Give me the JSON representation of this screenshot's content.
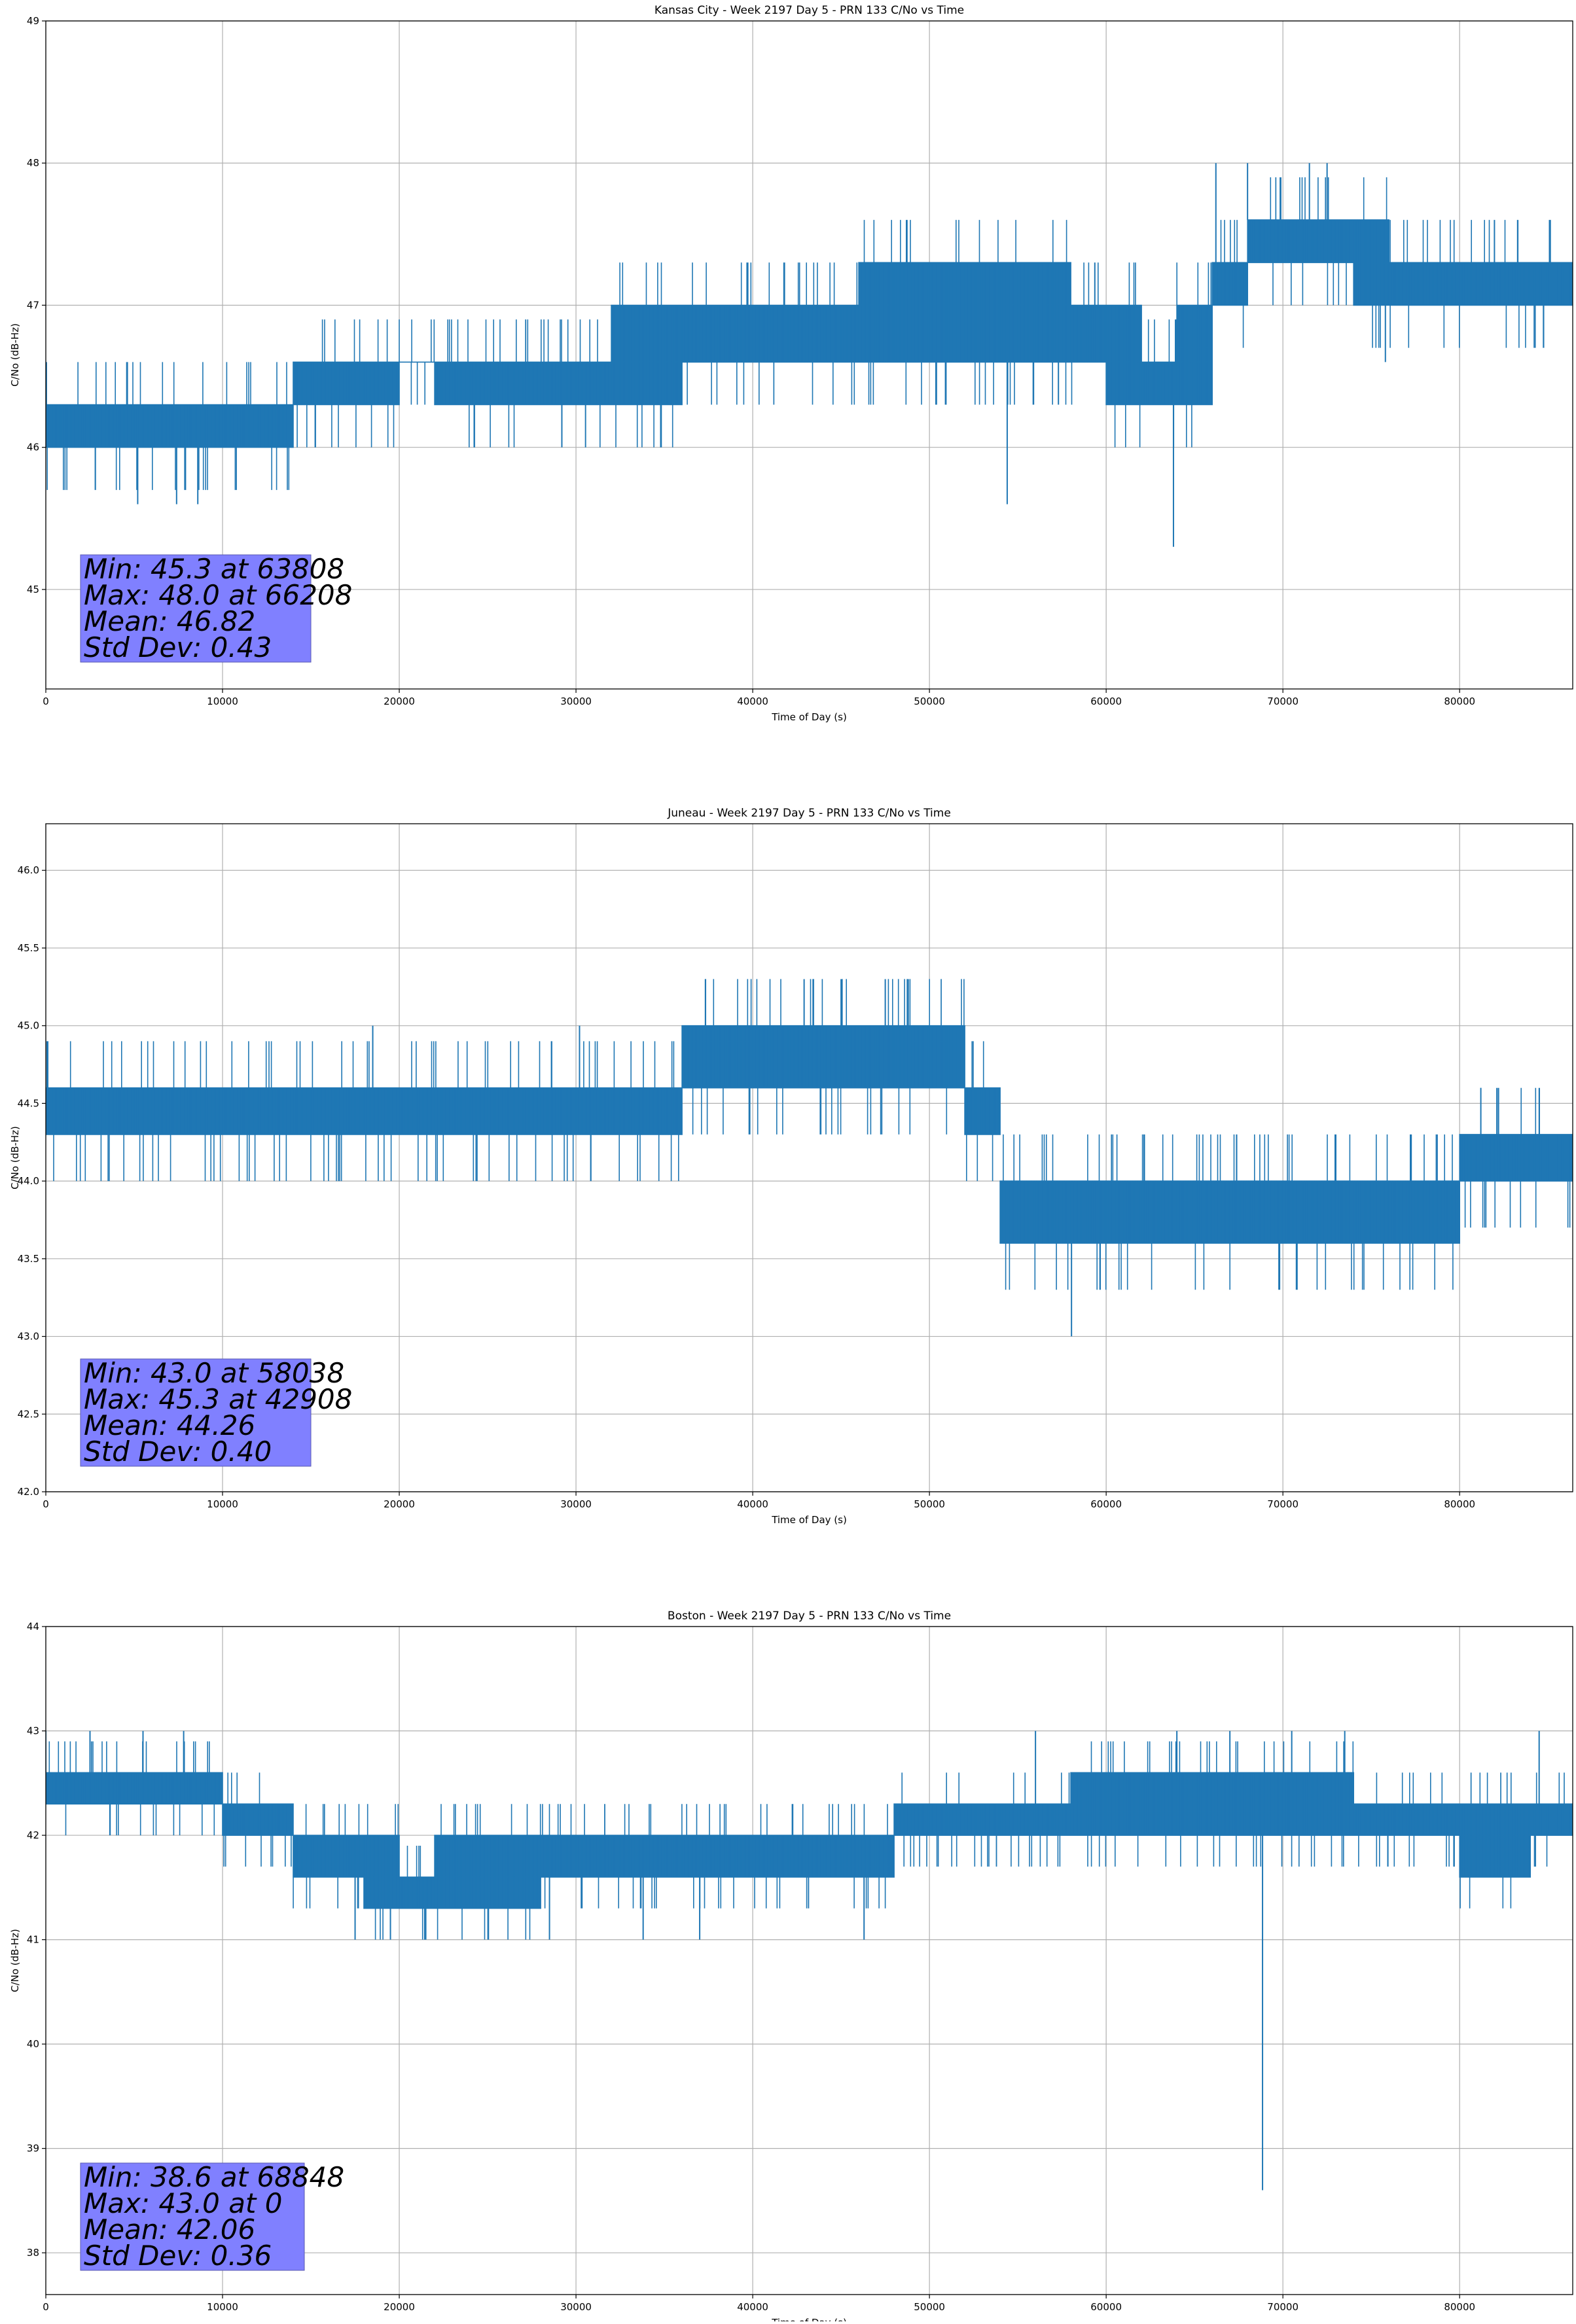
{
  "chart_data": [
    {
      "type": "line",
      "title": "Kansas City - Week 2197 Day 5 - PRN 133 C/No vs Time",
      "xlabel": "Time of Day (s)",
      "ylabel": "C/No (dB-Hz)",
      "xlim": [
        0,
        86400
      ],
      "ylim": [
        44.3,
        49
      ],
      "xticks": [
        0,
        10000,
        20000,
        30000,
        40000,
        50000,
        60000,
        70000,
        80000
      ],
      "yticks": [
        45,
        46,
        47,
        48,
        49
      ],
      "tick_decimals": 0,
      "grid": true,
      "color": "#1f77b4",
      "series": [
        {
          "x": [
            0,
            2000,
            4000,
            6000,
            8000,
            10000,
            12000,
            14000,
            16000,
            18000,
            20000,
            22000,
            24000,
            26000,
            28000,
            30000,
            32000,
            34000,
            36000,
            38000,
            40000,
            42000,
            44000,
            46000,
            48000,
            50000,
            52000,
            54000,
            56000,
            58000,
            60000,
            62000,
            64000,
            66000,
            68000,
            70000,
            72000,
            74000,
            76000,
            78000,
            80000,
            82000,
            84000,
            86400
          ],
          "low": [
            46.0,
            46.0,
            46.0,
            46.0,
            46.0,
            46.0,
            46.0,
            46.3,
            46.3,
            46.3,
            46.6,
            46.3,
            46.3,
            46.3,
            46.3,
            46.3,
            46.3,
            46.3,
            46.6,
            46.6,
            46.6,
            46.6,
            46.6,
            46.6,
            46.6,
            46.6,
            46.6,
            46.6,
            46.6,
            46.6,
            46.3,
            46.3,
            46.3,
            47.0,
            47.3,
            47.3,
            47.3,
            47.0,
            47.0,
            47.0,
            47.0,
            47.0,
            47.0,
            47.0
          ],
          "high": [
            46.3,
            46.3,
            46.3,
            46.3,
            46.3,
            46.3,
            46.3,
            46.6,
            46.6,
            46.6,
            46.6,
            46.6,
            46.6,
            46.6,
            46.6,
            46.6,
            47.0,
            47.0,
            47.0,
            47.0,
            47.0,
            47.0,
            47.0,
            47.3,
            47.3,
            47.3,
            47.3,
            47.3,
            47.3,
            47.0,
            47.0,
            46.6,
            47.0,
            47.3,
            47.6,
            47.6,
            47.6,
            47.6,
            47.3,
            47.3,
            47.3,
            47.3,
            47.3,
            47.3
          ],
          "spikes": [
            [
              5200,
              45.6
            ],
            [
              7400,
              45.6
            ],
            [
              8600,
              45.6
            ],
            [
              29200,
              46.0
            ],
            [
              54400,
              45.6
            ],
            [
              63808,
              45.3
            ],
            [
              66208,
              48.0
            ],
            [
              68000,
              48.0
            ],
            [
              71500,
              48.0
            ],
            [
              72500,
              48.0
            ],
            [
              75800,
              46.6
            ]
          ]
        }
      ],
      "stats": [
        "Min: 45.3 at 63808",
        "Max: 48.0 at 66208",
        "Mean: 46.82",
        "Std Dev: 0.43"
      ]
    },
    {
      "type": "line",
      "title": "Juneau - Week 2197 Day 5 - PRN 133 C/No vs Time",
      "xlabel": "Time of Day (s)",
      "ylabel": "C/No (dB-Hz)",
      "xlim": [
        0,
        86400
      ],
      "ylim": [
        42.0,
        46.3
      ],
      "xticks": [
        0,
        10000,
        20000,
        30000,
        40000,
        50000,
        60000,
        70000,
        80000
      ],
      "yticks": [
        42.0,
        42.5,
        43.0,
        43.5,
        44.0,
        44.5,
        45.0,
        45.5,
        46.0
      ],
      "tick_decimals": 1,
      "grid": true,
      "color": "#1f77b4",
      "series": [
        {
          "x": [
            0,
            2000,
            4000,
            6000,
            8000,
            10000,
            12000,
            14000,
            16000,
            18000,
            20000,
            22000,
            24000,
            26000,
            28000,
            30000,
            32000,
            34000,
            36000,
            38000,
            40000,
            42000,
            44000,
            46000,
            48000,
            50000,
            52000,
            54000,
            56000,
            58000,
            60000,
            62000,
            64000,
            66000,
            68000,
            70000,
            72000,
            74000,
            76000,
            78000,
            80000,
            82000,
            84000,
            86400
          ],
          "low": [
            44.3,
            44.3,
            44.3,
            44.3,
            44.3,
            44.3,
            44.3,
            44.3,
            44.3,
            44.3,
            44.3,
            44.3,
            44.3,
            44.3,
            44.3,
            44.3,
            44.3,
            44.3,
            44.6,
            44.6,
            44.6,
            44.6,
            44.6,
            44.6,
            44.6,
            44.6,
            44.3,
            43.6,
            43.6,
            43.6,
            43.6,
            43.6,
            43.6,
            43.6,
            43.6,
            43.6,
            43.6,
            43.6,
            43.6,
            43.6,
            44.0,
            44.0,
            44.0,
            44.0
          ],
          "high": [
            44.6,
            44.6,
            44.6,
            44.6,
            44.6,
            44.6,
            44.6,
            44.6,
            44.6,
            44.6,
            44.6,
            44.6,
            44.6,
            44.6,
            44.6,
            44.6,
            44.6,
            44.6,
            45.0,
            45.0,
            45.0,
            45.0,
            45.0,
            45.0,
            45.0,
            45.0,
            44.6,
            44.0,
            44.0,
            44.0,
            44.0,
            44.0,
            44.0,
            44.0,
            44.0,
            44.0,
            44.0,
            44.0,
            44.0,
            44.0,
            44.3,
            44.3,
            44.3,
            44.3
          ],
          "spikes": [
            [
              18500,
              45.0
            ],
            [
              30200,
              45.0
            ],
            [
              42908,
              45.3
            ],
            [
              45000,
              45.3
            ],
            [
              47500,
              45.3
            ],
            [
              48800,
              45.3
            ],
            [
              58038,
              43.0
            ],
            [
              81200,
              44.6
            ]
          ]
        }
      ],
      "stats": [
        "Min: 43.0 at 58038",
        "Max: 45.3 at 42908",
        "Mean: 44.26",
        "Std Dev: 0.40"
      ]
    },
    {
      "type": "line",
      "title": "Boston - Week 2197 Day 5 - PRN 133 C/No vs Time",
      "xlabel": "Time of Day (s)",
      "ylabel": "C/No (dB-Hz)",
      "xlim": [
        0,
        86400
      ],
      "ylim": [
        37.6,
        44
      ],
      "xticks": [
        0,
        10000,
        20000,
        30000,
        40000,
        50000,
        60000,
        70000,
        80000
      ],
      "yticks": [
        38,
        39,
        40,
        41,
        42,
        43,
        44
      ],
      "tick_decimals": 0,
      "grid": true,
      "color": "#1f77b4",
      "series": [
        {
          "x": [
            0,
            2000,
            4000,
            6000,
            8000,
            10000,
            12000,
            14000,
            16000,
            18000,
            20000,
            22000,
            24000,
            26000,
            28000,
            30000,
            32000,
            34000,
            36000,
            38000,
            40000,
            42000,
            44000,
            46000,
            48000,
            50000,
            52000,
            54000,
            56000,
            58000,
            60000,
            62000,
            64000,
            66000,
            68000,
            70000,
            72000,
            74000,
            76000,
            78000,
            80000,
            82000,
            84000,
            86400
          ],
          "low": [
            42.3,
            42.3,
            42.3,
            42.3,
            42.3,
            42.0,
            42.0,
            41.6,
            41.6,
            41.3,
            41.3,
            41.3,
            41.3,
            41.3,
            41.6,
            41.6,
            41.6,
            41.6,
            41.6,
            41.6,
            41.6,
            41.6,
            41.6,
            41.6,
            42.0,
            42.0,
            42.0,
            42.0,
            42.0,
            42.0,
            42.0,
            42.0,
            42.0,
            42.0,
            42.0,
            42.0,
            42.0,
            42.0,
            42.0,
            42.0,
            41.6,
            41.6,
            42.0,
            42.0
          ],
          "high": [
            42.6,
            42.6,
            42.6,
            42.6,
            42.6,
            42.3,
            42.3,
            42.0,
            42.0,
            42.0,
            41.6,
            42.0,
            42.0,
            42.0,
            42.0,
            42.0,
            42.0,
            42.0,
            42.0,
            42.0,
            42.0,
            42.0,
            42.0,
            42.0,
            42.3,
            42.3,
            42.3,
            42.3,
            42.3,
            42.6,
            42.6,
            42.6,
            42.6,
            42.6,
            42.6,
            42.6,
            42.6,
            42.3,
            42.3,
            42.3,
            42.3,
            42.3,
            42.3,
            42.3
          ],
          "spikes": [
            [
              0,
              43.0
            ],
            [
              2500,
              43.0
            ],
            [
              5500,
              43.0
            ],
            [
              7800,
              43.0
            ],
            [
              17500,
              41.0
            ],
            [
              19500,
              41.0
            ],
            [
              21500,
              41.0
            ],
            [
              28500,
              41.0
            ],
            [
              33800,
              41.0
            ],
            [
              37000,
              41.0
            ],
            [
              46300,
              41.0
            ],
            [
              56000,
              43.0
            ],
            [
              64000,
              43.0
            ],
            [
              67000,
              43.0
            ],
            [
              68848,
              38.6
            ],
            [
              70500,
              43.0
            ],
            [
              73500,
              43.0
            ],
            [
              84500,
              43.0
            ]
          ]
        }
      ],
      "stats": [
        "Min: 38.6 at 68848",
        "Max: 43.0 at 0",
        "Mean: 42.06",
        "Std Dev: 0.36"
      ]
    }
  ]
}
